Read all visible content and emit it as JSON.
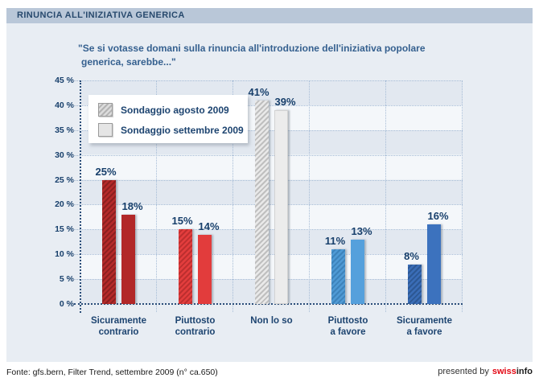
{
  "header": {
    "title": "RINUNCIA ALL'INIZIATIVA GENERICA"
  },
  "subtitle": {
    "line1": "\"Se si votasse domani sulla rinuncia all'introduzione dell'iniziativa popolare",
    "line2": "generica, sarebbe...\""
  },
  "legend": {
    "items": [
      {
        "label": "Sondaggio agosto 2009",
        "style": "hatched"
      },
      {
        "label": "Sondaggio settembre 2009",
        "style": "solid"
      }
    ]
  },
  "chart_data": {
    "type": "bar",
    "title": "RINUNCIA ALL'INIZIATIVA GENERICA",
    "question": "Se si votasse domani sulla rinuncia all'introduzione dell'iniziativa popolare generica, sarebbe...",
    "categories": [
      "Sicuramente\ncontrario",
      "Piuttosto\ncontrario",
      "Non lo so",
      "Piuttosto\na favore",
      "Sicuramente\na favore"
    ],
    "series": [
      {
        "name": "Sondaggio agosto 2009",
        "style": "hatched",
        "values": [
          25,
          15,
          41,
          11,
          8
        ]
      },
      {
        "name": "Sondaggio settembre 2009",
        "style": "solid",
        "values": [
          18,
          14,
          39,
          13,
          16
        ]
      }
    ],
    "value_suffix": "%",
    "ylim": [
      0,
      45
    ],
    "ytick_step": 5,
    "yticks": [
      "45 %",
      "40 %",
      "35 %",
      "30 %",
      "25 %",
      "20 %",
      "15 %",
      "10 %",
      "5 %",
      "0 %"
    ],
    "grid": "dotted",
    "legend_position": "top-left",
    "category_colors": [
      {
        "solid": "#b22828",
        "hatch_bg": "#b52a2a",
        "hatch_stripe": "#8c1f1f"
      },
      {
        "solid": "#e23c3c",
        "hatch_bg": "#e33d3d",
        "hatch_stripe": "#bd2f2f"
      },
      {
        "solid": "#ececec",
        "hatch_bg": "#e9e9e9",
        "hatch_stripe": "#bfbfbf",
        "edge": "#d2d2d2"
      },
      {
        "solid": "#55a0dc",
        "hatch_bg": "#4f9ad5",
        "hatch_stripe": "#3d83bb"
      },
      {
        "solid": "#3c72be",
        "hatch_bg": "#3a6db7",
        "hatch_stripe": "#2d5894"
      }
    ]
  },
  "colors": {
    "titlebar_bg": "#b9c7d8",
    "panel_bg": "#e8edf3",
    "band_dark": "#e2e8f0",
    "band_light": "#f4f7fa",
    "grid_light": "#a6bcd6",
    "axis_dark": "#2a4d79",
    "text_navy": "#1d4470",
    "brand_red": "#e30613"
  },
  "footer": {
    "source": "Fonte: gfs.bern, Filter Trend, settembre 2009 (n° ca.650)",
    "presented_by": "presented by",
    "brand_red_text": "swiss",
    "brand_dark_text": "info"
  }
}
